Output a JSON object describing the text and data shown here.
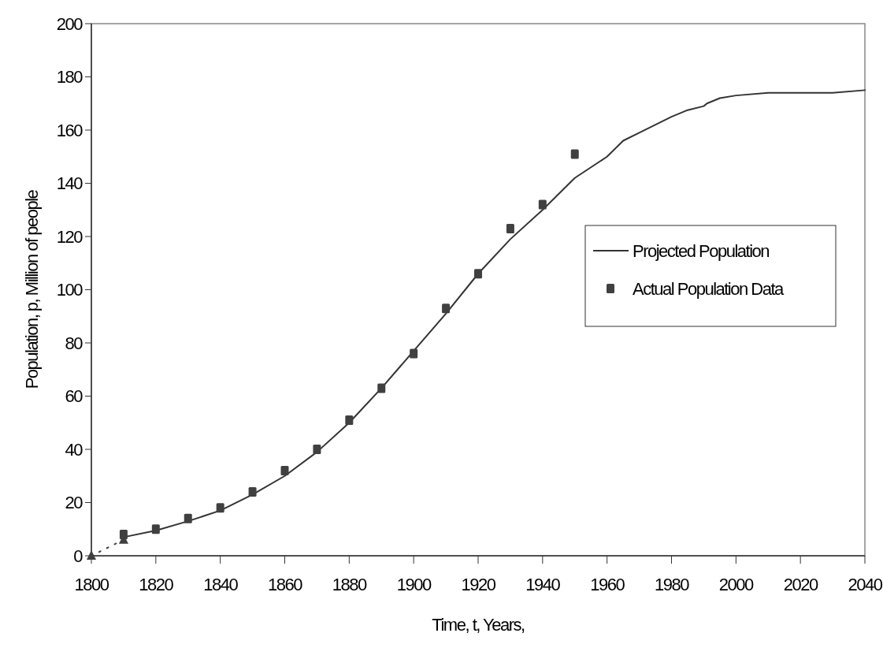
{
  "chart_data": {
    "type": "line",
    "xlabel": "Time, t, Years,",
    "ylabel": "Population, p, Million of people",
    "xlim": [
      1800,
      2040
    ],
    "xticks": [
      1800,
      1820,
      1840,
      1860,
      1880,
      1900,
      1920,
      1940,
      1960,
      1980,
      2000,
      2020,
      2040
    ],
    "ylim": [
      0,
      200
    ],
    "yticks": [
      0,
      20,
      40,
      60,
      80,
      100,
      120,
      140,
      160,
      180,
      200
    ],
    "grid": false,
    "legend": "right",
    "series": [
      {
        "name": "Projected Population",
        "color": "#333333",
        "line_style": "solid",
        "marker": "none",
        "x": [
          1810,
          1820,
          1830,
          1840,
          1850,
          1860,
          1870,
          1880,
          1890,
          1900,
          1910,
          1920,
          1930,
          1940,
          1950,
          1960,
          1965,
          1970,
          1980,
          1985,
          1990,
          1991,
          1995,
          2000,
          2010,
          2030,
          2040
        ],
        "values": [
          7,
          9.5,
          13,
          17,
          23,
          30,
          39,
          50,
          63,
          77,
          91,
          106,
          119,
          130,
          142,
          150,
          156,
          159,
          165,
          167.5,
          169,
          170,
          172,
          173,
          174,
          174,
          175
        ]
      },
      {
        "name": "Actual Population Data",
        "type": "scatter",
        "color": "#404040",
        "marker": "square",
        "x": [
          1810,
          1820,
          1830,
          1840,
          1850,
          1860,
          1870,
          1880,
          1890,
          1900,
          1910,
          1920,
          1930,
          1940,
          1950
        ],
        "values": [
          8,
          10,
          14,
          18,
          24,
          32,
          40,
          51,
          63,
          76,
          93,
          106,
          123,
          132,
          151
        ]
      },
      {
        "color": "#404040",
        "line_style": "dotted",
        "marker": "triangle",
        "x": [
          1800,
          1810
        ],
        "values": [
          0,
          6
        ]
      }
    ]
  }
}
